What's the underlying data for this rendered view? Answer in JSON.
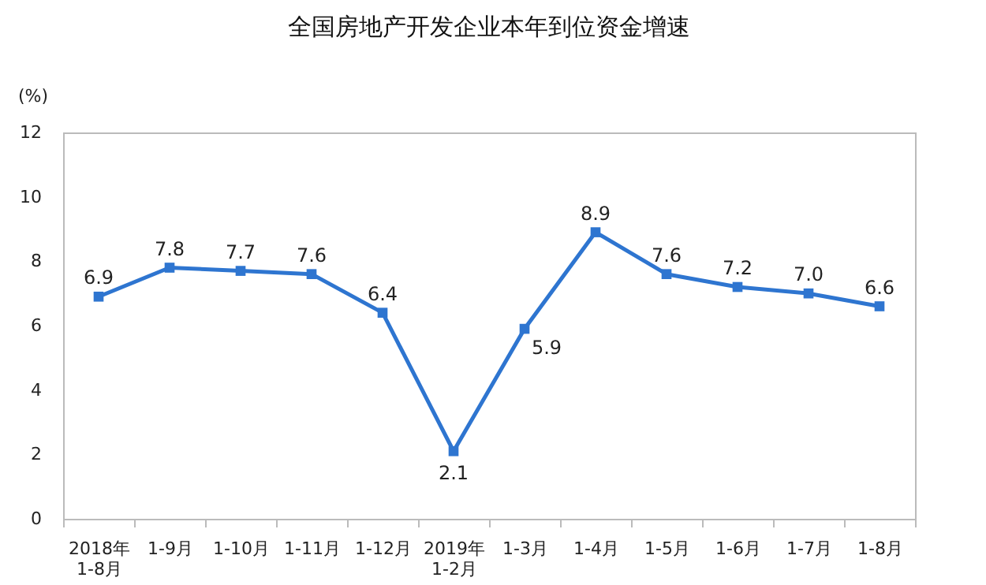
{
  "chart_data": {
    "type": "line",
    "title": "全国房地产开发企业本年到位资金增速",
    "ylabel": "(%)",
    "categories": [
      "2018年\n1-8月",
      "1-9月",
      "1-10月",
      "1-11月",
      "1-12月",
      "2019年\n1-2月",
      "1-3月",
      "1-4月",
      "1-5月",
      "1-6月",
      "1-7月",
      "1-8月"
    ],
    "series": [
      {
        "color": "#2e75d0",
        "values": [
          6.9,
          7.8,
          7.7,
          7.6,
          6.4,
          2.1,
          5.9,
          8.9,
          7.6,
          7.2,
          7.0,
          6.6
        ],
        "value_labels": [
          "6.9",
          "7.8",
          "7.7",
          "7.6",
          "6.4",
          "2.1",
          "5.9",
          "8.9",
          "7.6",
          "7.2",
          "7.0",
          "6.6"
        ]
      }
    ],
    "ylim": [
      0,
      12
    ],
    "yticks": [
      0,
      2,
      4,
      6,
      8,
      10,
      12
    ],
    "grid": false,
    "marker": "square",
    "line_style": "solid"
  }
}
